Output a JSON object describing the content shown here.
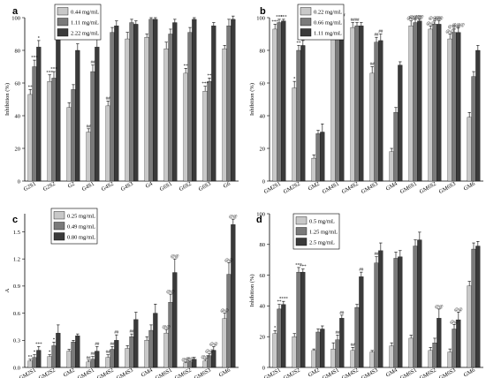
{
  "chart_data": [
    {
      "panel": "a",
      "type": "bar",
      "ylabel": "Inhibition (%)",
      "ylim": [
        0,
        100
      ],
      "yticks": [
        0,
        20,
        40,
        60,
        80,
        100
      ],
      "categories": [
        "G2S1",
        "G2S2",
        "G2",
        "G4S1",
        "G4S2",
        "G4S3",
        "G4",
        "G6S1",
        "G6S2",
        "G6S3",
        "G6"
      ],
      "series": [
        {
          "name": "0.44 mg/mL",
          "color": "#c8c8c8",
          "values": [
            53,
            61,
            45,
            30,
            46,
            87,
            88,
            81,
            66,
            55,
            81
          ],
          "errors": [
            3,
            4,
            3,
            2,
            3,
            4,
            2,
            4,
            3,
            3,
            2
          ]
        },
        {
          "name": "1.11 mg/mL",
          "color": "#7a7a7a",
          "values": [
            70,
            63,
            56,
            67,
            91,
            97,
            99,
            90,
            91,
            61,
            95
          ],
          "errors": [
            4,
            4,
            3,
            4,
            3,
            2,
            1,
            3,
            3,
            2,
            4
          ]
        },
        {
          "name": "2.22 mg/mL",
          "color": "#3a3a3a",
          "values": [
            82,
            88,
            80,
            82,
            95,
            96,
            99,
            97,
            99,
            95,
            99
          ],
          "errors": [
            4,
            4,
            4,
            5,
            3,
            2,
            1,
            2,
            1,
            2,
            2
          ]
        }
      ],
      "annotations": [
        {
          "cat": 0,
          "series": 0,
          "text": "**"
        },
        {
          "cat": 0,
          "series": 1,
          "text": "***"
        },
        {
          "cat": 0,
          "series": 2,
          "text": "*"
        },
        {
          "cat": 1,
          "series": 0,
          "text": "***"
        },
        {
          "cat": 1,
          "series": 1,
          "text": "***"
        },
        {
          "cat": 1,
          "series": 2,
          "text": "*"
        },
        {
          "cat": 3,
          "series": 0,
          "text": "##"
        },
        {
          "cat": 3,
          "series": 1,
          "text": "##"
        },
        {
          "cat": 3,
          "series": 2,
          "text": "##"
        },
        {
          "cat": 4,
          "series": 0,
          "text": "##"
        },
        {
          "cat": 8,
          "series": 0,
          "text": "**"
        },
        {
          "cat": 9,
          "series": 0,
          "text": "***"
        },
        {
          "cat": 9,
          "series": 1,
          "text": "**"
        }
      ]
    },
    {
      "panel": "b",
      "type": "bar",
      "ylabel": "Inhibition (%)",
      "ylim": [
        0,
        100
      ],
      "yticks": [
        0,
        20,
        40,
        60,
        80,
        100
      ],
      "categories": [
        "GM2S1",
        "GM2S2",
        "GM2",
        "GM4S1",
        "GM4S2",
        "GM4S3",
        "GM4",
        "GM6S1",
        "GM6S2",
        "GM6S3",
        "GM6"
      ],
      "series": [
        {
          "name": "0.22 mg/mL",
          "color": "#c8c8c8",
          "values": [
            93,
            57,
            14,
            95,
            94,
            66,
            18,
            95,
            93,
            87,
            39
          ],
          "errors": [
            3,
            4,
            2,
            3,
            3,
            4,
            2,
            3,
            2,
            3,
            3
          ]
        },
        {
          "name": "0.66 mg/mL",
          "color": "#7a7a7a",
          "values": [
            97,
            80,
            29,
            98,
            95,
            85,
            42,
            97,
            96,
            91,
            64
          ],
          "errors": [
            2,
            3,
            2,
            1,
            2,
            3,
            3,
            2,
            2,
            2,
            3
          ]
        },
        {
          "name": "1.11 mg/mL",
          "color": "#3a3a3a",
          "values": [
            98,
            83,
            30,
            99,
            95,
            86,
            71,
            98,
            96,
            91,
            80
          ],
          "errors": [
            1,
            3,
            5,
            1,
            2,
            4,
            2,
            1,
            2,
            3,
            3
          ]
        }
      ],
      "annotations": [
        {
          "cat": 0,
          "series": 0,
          "text": "***"
        },
        {
          "cat": 0,
          "series": 1,
          "text": "***"
        },
        {
          "cat": 0,
          "series": 2,
          "text": "***"
        },
        {
          "cat": 1,
          "series": 0,
          "text": "*"
        },
        {
          "cat": 1,
          "series": 1,
          "text": "**"
        },
        {
          "cat": 1,
          "series": 2,
          "text": "**"
        },
        {
          "cat": 3,
          "series": 0,
          "text": "##"
        },
        {
          "cat": 3,
          "series": 1,
          "text": "###"
        },
        {
          "cat": 3,
          "series": 2,
          "text": "###"
        },
        {
          "cat": 4,
          "series": 0,
          "text": "##"
        },
        {
          "cat": 4,
          "series": 1,
          "text": "##"
        },
        {
          "cat": 5,
          "series": 0,
          "text": "##"
        },
        {
          "cat": 5,
          "series": 1,
          "text": "##"
        },
        {
          "cat": 5,
          "series": 2,
          "text": "##"
        },
        {
          "cat": 7,
          "series": 0,
          "text": "@@"
        },
        {
          "cat": 7,
          "series": 1,
          "text": "@@@"
        },
        {
          "cat": 7,
          "series": 2,
          "text": "@@"
        },
        {
          "cat": 8,
          "series": 0,
          "text": "@@"
        },
        {
          "cat": 8,
          "series": 1,
          "text": "@@@"
        },
        {
          "cat": 8,
          "series": 2,
          "text": "@@"
        },
        {
          "cat": 9,
          "series": 0,
          "text": "@@"
        },
        {
          "cat": 9,
          "series": 1,
          "text": "@@@"
        },
        {
          "cat": 9,
          "series": 2,
          "text": "@@@"
        }
      ]
    },
    {
      "panel": "c",
      "type": "bar",
      "ylabel": "A",
      "ylim": [
        0,
        1.7
      ],
      "yticks": [
        0.0,
        0.3,
        0.6,
        0.9,
        1.2,
        1.5
      ],
      "categories": [
        "GM2S1",
        "GM2S2",
        "GM2",
        "GM4S1",
        "GM4S2",
        "GM4S3",
        "GM4",
        "GM6S1",
        "GM6S2",
        "GM6S3",
        "GM6"
      ],
      "series": [
        {
          "name": "0.25 mg/mL",
          "color": "#c8c8c8",
          "values": [
            0.07,
            0.12,
            0.18,
            0.06,
            0.11,
            0.21,
            0.3,
            0.38,
            0.05,
            0.07,
            0.54
          ],
          "errors": [
            0.02,
            0.02,
            0.02,
            0.02,
            0.03,
            0.03,
            0.04,
            0.04,
            0.01,
            0.02,
            0.06
          ]
        },
        {
          "name": "0.49 mg/mL",
          "color": "#7a7a7a",
          "values": [
            0.11,
            0.24,
            0.28,
            0.09,
            0.2,
            0.34,
            0.41,
            0.72,
            0.06,
            0.13,
            1.03
          ],
          "errors": [
            0.03,
            0.04,
            0.02,
            0.03,
            0.03,
            0.03,
            0.06,
            0.09,
            0.01,
            0.02,
            0.13
          ]
        },
        {
          "name": "0.80 mg/mL",
          "color": "#3a3a3a",
          "values": [
            0.19,
            0.38,
            0.35,
            0.18,
            0.3,
            0.53,
            0.6,
            1.05,
            0.09,
            0.19,
            1.58
          ],
          "errors": [
            0.04,
            0.09,
            0.02,
            0.05,
            0.06,
            0.08,
            0.1,
            0.15,
            0.02,
            0.04,
            0.06
          ]
        }
      ],
      "annotations": [
        {
          "cat": 0,
          "series": 0,
          "text": "**"
        },
        {
          "cat": 0,
          "series": 1,
          "text": "*"
        },
        {
          "cat": 0,
          "series": 2,
          "text": "***"
        },
        {
          "cat": 1,
          "series": 0,
          "text": "*"
        },
        {
          "cat": 1,
          "series": 1,
          "text": "*"
        },
        {
          "cat": 3,
          "series": 0,
          "text": "##"
        },
        {
          "cat": 3,
          "series": 1,
          "text": "##"
        },
        {
          "cat": 3,
          "series": 2,
          "text": "##"
        },
        {
          "cat": 4,
          "series": 0,
          "text": "##"
        },
        {
          "cat": 4,
          "series": 1,
          "text": "##"
        },
        {
          "cat": 4,
          "series": 2,
          "text": "##"
        },
        {
          "cat": 5,
          "series": 1,
          "text": "##"
        },
        {
          "cat": 7,
          "series": 0,
          "text": "@@"
        },
        {
          "cat": 7,
          "series": 1,
          "text": "@@"
        },
        {
          "cat": 7,
          "series": 2,
          "text": "@@"
        },
        {
          "cat": 8,
          "series": 0,
          "text": "@@"
        },
        {
          "cat": 8,
          "series": 1,
          "text": "@@"
        },
        {
          "cat": 9,
          "series": 0,
          "text": "@@"
        },
        {
          "cat": 9,
          "series": 1,
          "text": "@@"
        },
        {
          "cat": 9,
          "series": 2,
          "text": "@@"
        },
        {
          "cat": 10,
          "series": 0,
          "text": "@@"
        },
        {
          "cat": 10,
          "series": 1,
          "text": "@@"
        },
        {
          "cat": 10,
          "series": 2,
          "text": "@@"
        }
      ]
    },
    {
      "panel": "d",
      "type": "bar",
      "ylabel": "Inhibition (%)",
      "ylim": [
        0,
        100
      ],
      "yticks": [
        0,
        20,
        40,
        60,
        80,
        100
      ],
      "categories": [
        "GM2S1",
        "GM2S2",
        "GM2",
        "GM4S1",
        "GM4S2",
        "GM4S3",
        "GM4",
        "GM6S1",
        "GM6S2",
        "GM6S3",
        "GM6"
      ],
      "series": [
        {
          "name": "0.5 mg/mL",
          "color": "#c8c8c8",
          "values": [
            22,
            20,
            11,
            12,
            11,
            10,
            14,
            19,
            11,
            10,
            53
          ],
          "errors": [
            2,
            2,
            1,
            4,
            2,
            1,
            2,
            2,
            2,
            2,
            3
          ]
        },
        {
          "name": "1.25 mg/mL",
          "color": "#7a7a7a",
          "values": [
            38,
            62,
            23,
            18,
            39,
            68,
            71,
            79,
            16,
            25,
            77
          ],
          "errors": [
            3,
            3,
            2,
            3,
            2,
            4,
            4,
            4,
            3,
            3,
            4
          ]
        },
        {
          "name": "2.5 mg/mL",
          "color": "#3a3a3a",
          "values": [
            41,
            62,
            25,
            32,
            59,
            76,
            72,
            83,
            32,
            31,
            79
          ],
          "errors": [
            2,
            2,
            2,
            2,
            3,
            5,
            4,
            5,
            6,
            5,
            3
          ]
        }
      ],
      "annotations": [
        {
          "cat": 0,
          "series": 0,
          "text": "*"
        },
        {
          "cat": 0,
          "series": 1,
          "text": "**"
        },
        {
          "cat": 0,
          "series": 2,
          "text": "****"
        },
        {
          "cat": 1,
          "series": 1,
          "text": "***"
        },
        {
          "cat": 1,
          "series": 2,
          "text": "***"
        },
        {
          "cat": 3,
          "series": 1,
          "text": "##"
        },
        {
          "cat": 3,
          "series": 2,
          "text": "##"
        },
        {
          "cat": 4,
          "series": 0,
          "text": "##"
        },
        {
          "cat": 4,
          "series": 2,
          "text": "##"
        },
        {
          "cat": 5,
          "series": 1,
          "text": "##"
        },
        {
          "cat": 8,
          "series": 2,
          "text": "@@"
        },
        {
          "cat": 9,
          "series": 1,
          "text": "@@"
        },
        {
          "cat": 9,
          "series": 2,
          "text": "@@"
        }
      ]
    }
  ]
}
